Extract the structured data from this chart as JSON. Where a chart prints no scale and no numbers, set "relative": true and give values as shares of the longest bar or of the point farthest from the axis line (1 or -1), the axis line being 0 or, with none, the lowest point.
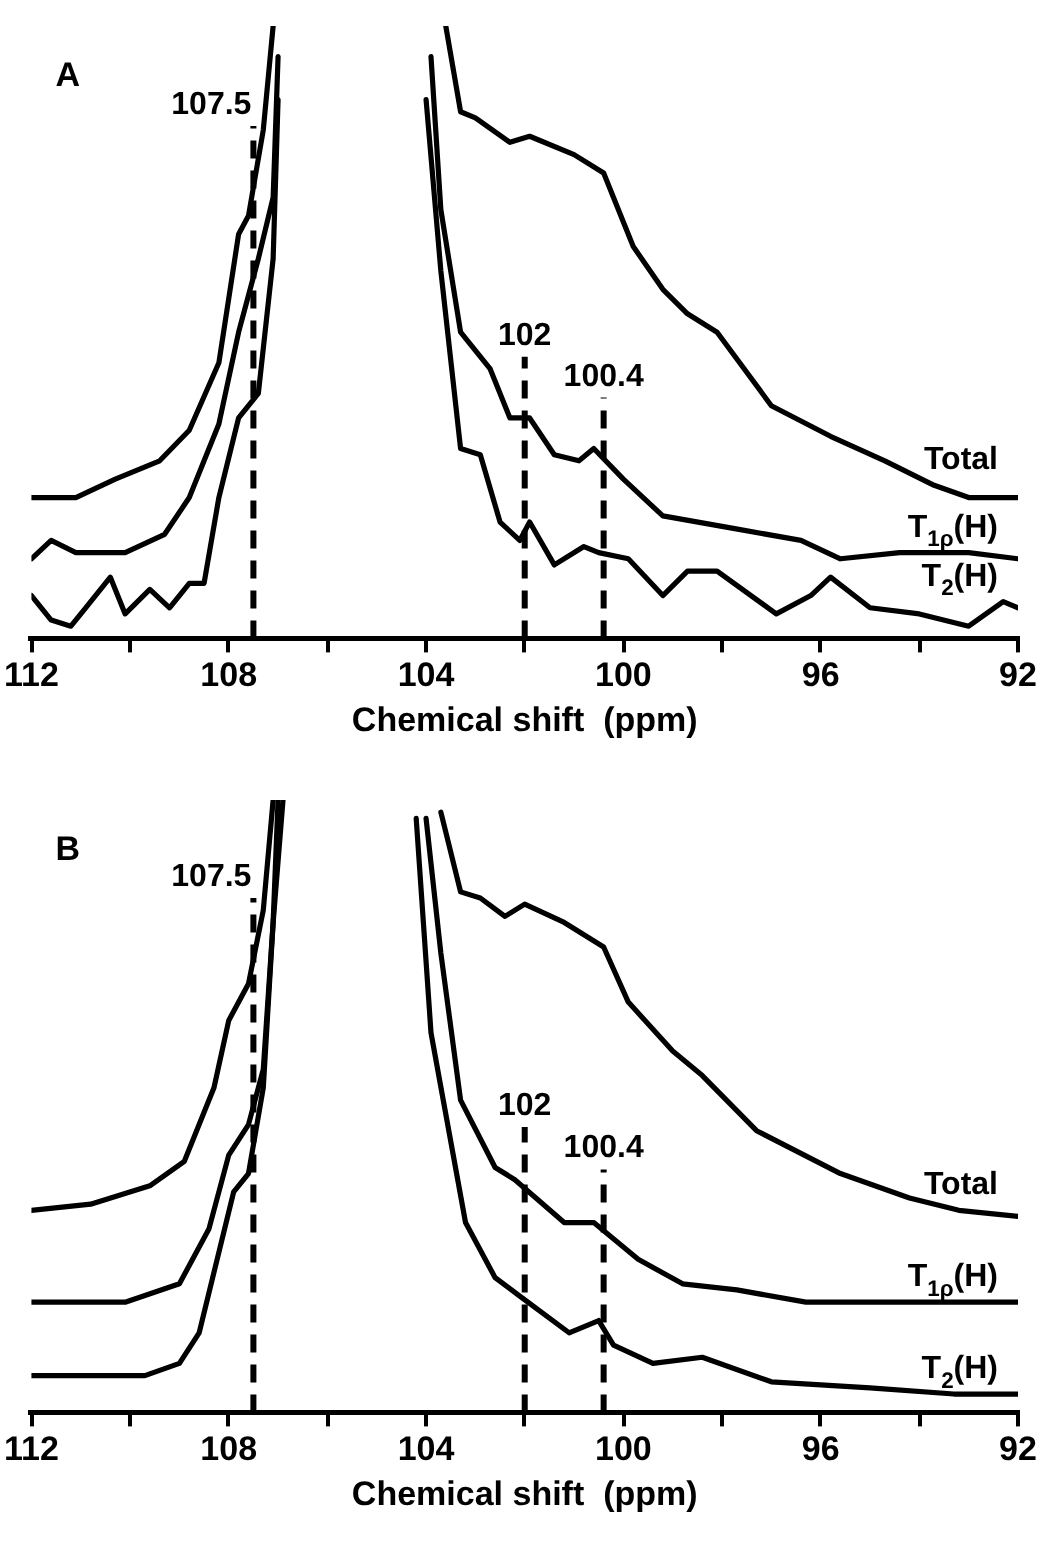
{
  "chart_data": [
    {
      "type": "line",
      "title": "A",
      "xlabel": "Chemical shift  (ppm)",
      "xlim": [
        112,
        92
      ],
      "xticks": [
        112,
        {
          "value": 110,
          "label": null
        },
        108,
        {
          "value": 106,
          "label": null
        },
        104,
        {
          "value": 102,
          "label": null
        },
        100,
        {
          "value": 98,
          "label": null
        },
        96,
        {
          "value": 94,
          "label": null
        },
        92
      ],
      "relative": true,
      "grid": false,
      "marker": "none",
      "line_style": "solid",
      "ref_lines": [
        {
          "axis": "x",
          "value": 107.5,
          "label": "107.5",
          "color": "#000000",
          "line_style": "dashed"
        },
        {
          "axis": "x",
          "value": 102,
          "label": "102",
          "color": "#000000",
          "line_style": "dashed"
        },
        {
          "axis": "x",
          "value": 100.4,
          "label": "100.4",
          "color": "#000000",
          "line_style": "dashed"
        }
      ],
      "series": [
        {
          "name": "Total",
          "color": "#000000",
          "x": [
            112,
            111.1,
            110.3,
            109.4,
            108.8,
            108.2,
            107.8,
            107.6,
            107.3,
            107.1,
            105.5,
            103.6,
            103.3,
            103.0,
            102.3,
            101.9,
            101.0,
            100.4,
            99.8,
            99.2,
            98.7,
            98.1,
            97.0,
            95.8,
            94.7,
            93.7,
            93.0,
            92
          ],
          "values": [
            0.23,
            0.23,
            0.26,
            0.29,
            0.34,
            0.45,
            0.66,
            0.69,
            0.83,
            1.0,
            null,
            1.0,
            0.86,
            0.85,
            0.81,
            0.82,
            0.79,
            0.76,
            0.64,
            0.57,
            0.53,
            0.5,
            0.38,
            0.33,
            0.29,
            0.25,
            0.23,
            0.23
          ]
        },
        {
          "name": "T$_{1ρ}$(H)",
          "color": "#000000",
          "x": [
            112,
            111.6,
            111.1,
            110.1,
            109.3,
            108.8,
            108.2,
            107.8,
            107.4,
            107.1,
            107.0,
            105.5,
            103.9,
            103.7,
            103.3,
            102.7,
            102.3,
            101.9,
            101.4,
            100.9,
            100.6,
            100.0,
            99.2,
            97.8,
            96.4,
            95.6,
            94.4,
            93.0,
            92
          ],
          "values": [
            0.13,
            0.16,
            0.14,
            0.14,
            0.17,
            0.23,
            0.35,
            0.5,
            0.62,
            0.72,
            0.95,
            null,
            0.95,
            0.7,
            0.5,
            0.44,
            0.36,
            0.36,
            0.3,
            0.29,
            0.31,
            0.26,
            0.2,
            0.18,
            0.16,
            0.13,
            0.14,
            0.14,
            0.13
          ]
        },
        {
          "name": "T$_{2}$(H)",
          "color": "#000000",
          "x": [
            112,
            111.6,
            111.2,
            110.9,
            110.4,
            110.1,
            109.6,
            109.2,
            108.8,
            108.5,
            108.2,
            107.8,
            107.4,
            107.1,
            107.0,
            105.5,
            104.0,
            103.7,
            103.3,
            102.9,
            102.5,
            102.1,
            101.9,
            101.4,
            100.8,
            100.5,
            99.9,
            99.2,
            98.7,
            98.1,
            96.9,
            96.2,
            95.8,
            95.0,
            94.0,
            93.0,
            92.3,
            92
          ],
          "values": [
            0.07,
            0.03,
            0.02,
            0.05,
            0.1,
            0.04,
            0.08,
            0.05,
            0.09,
            0.09,
            0.23,
            0.36,
            0.4,
            0.62,
            0.88,
            null,
            0.88,
            0.6,
            0.31,
            0.3,
            0.19,
            0.16,
            0.19,
            0.12,
            0.15,
            0.14,
            0.13,
            0.07,
            0.11,
            0.11,
            0.04,
            0.07,
            0.1,
            0.05,
            0.04,
            0.02,
            0.06,
            0.05
          ]
        }
      ]
    },
    {
      "type": "line",
      "title": "B",
      "xlabel": "Chemical shift  (ppm)",
      "xlim": [
        112,
        92
      ],
      "xticks": [
        112,
        {
          "value": 110,
          "label": null
        },
        108,
        {
          "value": 106,
          "label": null
        },
        104,
        {
          "value": 102,
          "label": null
        },
        100,
        {
          "value": 98,
          "label": null
        },
        96,
        {
          "value": 94,
          "label": null
        },
        92
      ],
      "relative": true,
      "grid": false,
      "marker": "none",
      "line_style": "solid",
      "ref_lines": [
        {
          "axis": "x",
          "value": 107.5,
          "label": "107.5",
          "color": "#000000",
          "line_style": "dashed"
        },
        {
          "axis": "x",
          "value": 102,
          "label": "102",
          "color": "#000000",
          "line_style": "dashed"
        },
        {
          "axis": "x",
          "value": 100.4,
          "label": "100.4",
          "color": "#000000",
          "line_style": "dashed"
        }
      ],
      "series": [
        {
          "name": "Total",
          "color": "#000000",
          "x": [
            112,
            110.8,
            109.6,
            108.9,
            108.3,
            108.0,
            107.6,
            107.3,
            107.1,
            105.5,
            103.7,
            103.3,
            102.9,
            102.4,
            102.0,
            101.2,
            100.4,
            99.9,
            99.0,
            98.4,
            97.3,
            95.6,
            94.2,
            93.2,
            92
          ],
          "values": [
            0.33,
            0.34,
            0.37,
            0.41,
            0.53,
            0.64,
            0.7,
            0.82,
            1.0,
            null,
            0.98,
            0.85,
            0.84,
            0.81,
            0.83,
            0.8,
            0.76,
            0.67,
            0.59,
            0.55,
            0.46,
            0.39,
            0.35,
            0.33,
            0.32
          ]
        },
        {
          "name": "T$_{1ρ}$(H)",
          "color": "#000000",
          "x": [
            112,
            110.1,
            109.0,
            108.4,
            108.0,
            107.6,
            107.3,
            107.1,
            106.9,
            105.5,
            104.0,
            103.7,
            103.3,
            102.6,
            102.2,
            101.2,
            100.6,
            99.7,
            98.8,
            97.7,
            96.3,
            94.2,
            92
          ],
          "values": [
            0.18,
            0.18,
            0.21,
            0.3,
            0.42,
            0.47,
            0.56,
            0.8,
            1.0,
            null,
            0.97,
            0.75,
            0.51,
            0.4,
            0.38,
            0.31,
            0.31,
            0.25,
            0.21,
            0.2,
            0.18,
            0.18,
            0.18
          ]
        },
        {
          "name": "T$_{2}$(H)",
          "color": "#000000",
          "x": [
            112,
            110.8,
            109.7,
            109.0,
            108.6,
            107.9,
            107.6,
            107.3,
            107.1,
            107.0,
            105.5,
            104.2,
            103.9,
            103.2,
            102.6,
            102.1,
            101.1,
            100.5,
            100.2,
            99.4,
            98.4,
            97.0,
            95.0,
            93.3,
            92
          ],
          "values": [
            0.06,
            0.06,
            0.06,
            0.08,
            0.13,
            0.36,
            0.39,
            0.53,
            0.8,
            1.0,
            null,
            0.97,
            0.62,
            0.31,
            0.22,
            0.19,
            0.13,
            0.15,
            0.11,
            0.08,
            0.09,
            0.05,
            0.04,
            0.03,
            0.03
          ]
        }
      ]
    }
  ]
}
